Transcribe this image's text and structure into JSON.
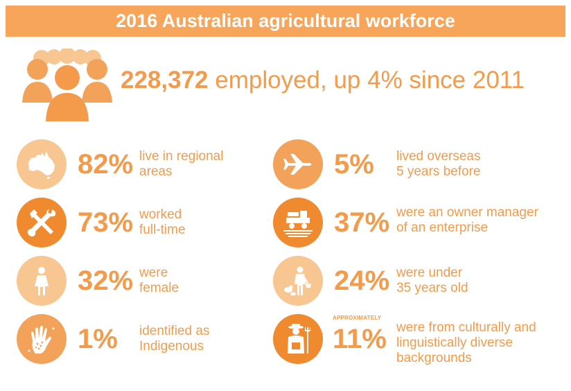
{
  "title": "2016 Australian agricultural workforce",
  "headline": {
    "number": "228,372",
    "text": "employed, up 4% since 2011",
    "icon": "people-group-icon"
  },
  "colors": {
    "banner": "#f7a55a",
    "text": "#f39b4a",
    "circle_light": "#f8c690",
    "circle_mid": "#f3a25a",
    "circle_dark": "#ef8a2e"
  },
  "stats_left": [
    {
      "pct": "82%",
      "line1": "live in regional",
      "line2": "areas",
      "icon": "australia-map-icon"
    },
    {
      "pct": "73%",
      "line1": "worked",
      "line2": "full-time",
      "icon": "tools-icon"
    },
    {
      "pct": "32%",
      "line1": "were",
      "line2": "female",
      "icon": "female-icon"
    },
    {
      "pct": "1%",
      "line1": "identified as",
      "line2": "Indigenous",
      "icon": "handprint-icon"
    }
  ],
  "stats_right": [
    {
      "pct": "5%",
      "line1": "lived overseas",
      "line2": "5 years before",
      "icon": "airplane-icon"
    },
    {
      "pct": "37%",
      "line1": "were an owner manager",
      "line2": "of an enterprise",
      "icon": "tractor-icon"
    },
    {
      "pct": "24%",
      "line1": "were under",
      "line2": "35 years old",
      "icon": "young-farmer-icon"
    },
    {
      "pct": "11%",
      "qualifier": "APPROXIMATELY",
      "line1": "were from culturally and",
      "line2": "linguistically diverse",
      "line3": "backgrounds",
      "icon": "farmer-icon"
    }
  ]
}
